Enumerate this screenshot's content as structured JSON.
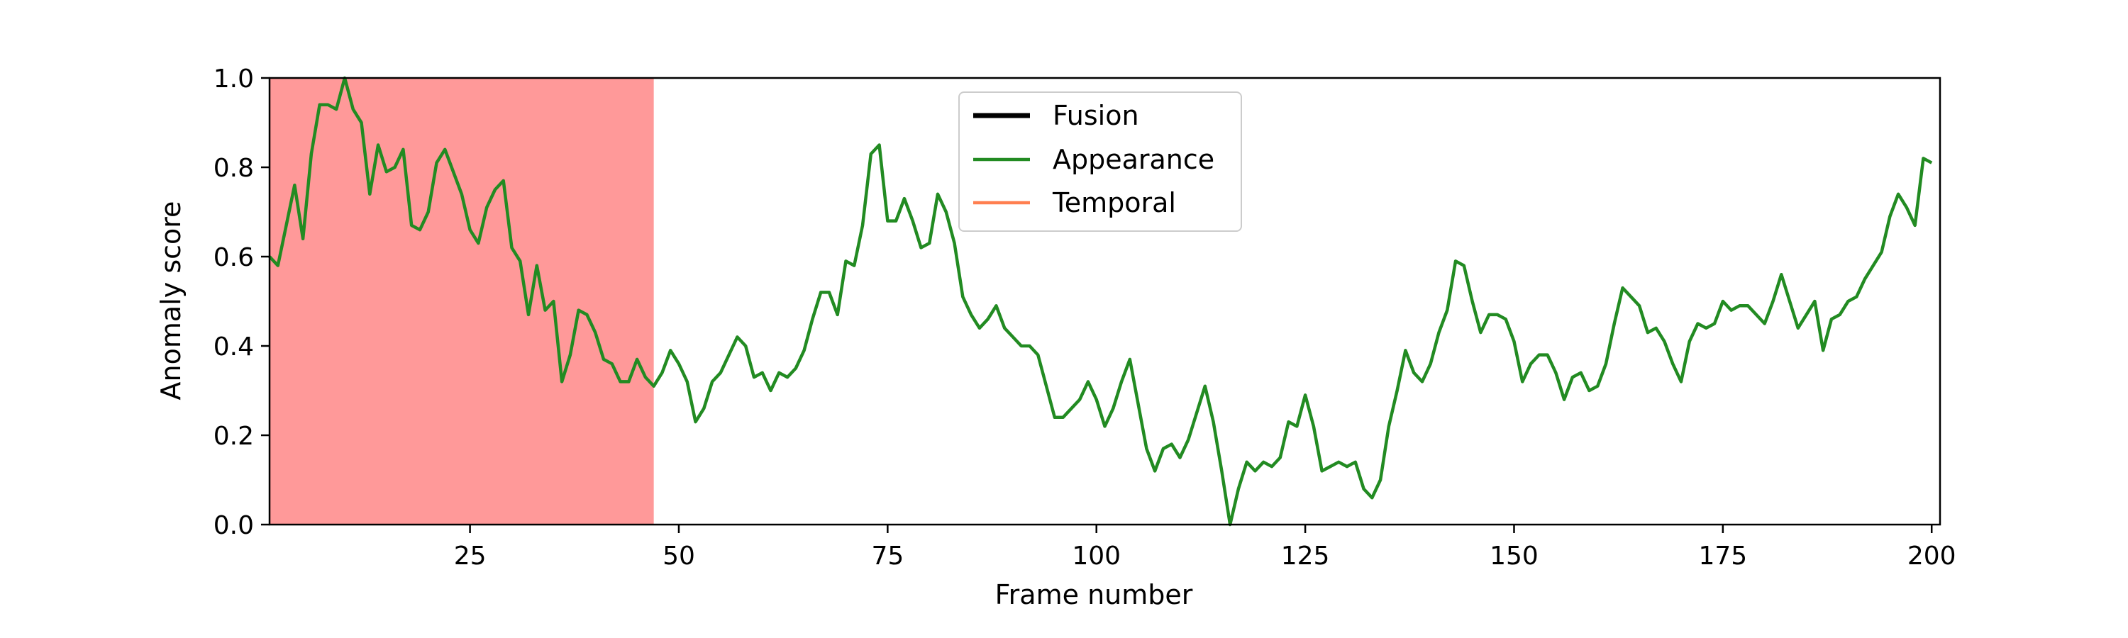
{
  "chart_data": {
    "type": "line",
    "title": "",
    "xlabel": "Frame number",
    "ylabel": "Anomaly score",
    "xlim": [
      1,
      201
    ],
    "ylim": [
      0.0,
      1.0
    ],
    "xticks": [
      25,
      50,
      75,
      100,
      125,
      150,
      175,
      200
    ],
    "yticks": [
      0.0,
      0.2,
      0.4,
      0.6,
      0.8,
      1.0
    ],
    "xtick_labels": [
      "25",
      "50",
      "75",
      "100",
      "125",
      "150",
      "175",
      "200"
    ],
    "ytick_labels": [
      "0.0",
      "0.2",
      "0.4",
      "0.6",
      "0.8",
      "1.0"
    ],
    "grid": false,
    "legend_position": "top-center",
    "anomaly_region": {
      "x_start": 1,
      "x_end": 47,
      "color": "#ff9999"
    },
    "series": [
      {
        "name": "Fusion",
        "color": "#000000",
        "visible": false,
        "values": []
      },
      {
        "name": "Appearance",
        "color": "#228b22",
        "visible": true,
        "x_start": 1,
        "values": [
          0.6,
          0.58,
          0.67,
          0.76,
          0.64,
          0.83,
          0.94,
          0.94,
          0.93,
          1.0,
          0.93,
          0.9,
          0.74,
          0.85,
          0.79,
          0.8,
          0.84,
          0.67,
          0.66,
          0.7,
          0.81,
          0.84,
          0.79,
          0.74,
          0.66,
          0.63,
          0.71,
          0.75,
          0.77,
          0.62,
          0.59,
          0.47,
          0.58,
          0.48,
          0.5,
          0.32,
          0.38,
          0.48,
          0.47,
          0.43,
          0.37,
          0.36,
          0.32,
          0.32,
          0.37,
          0.33,
          0.31,
          0.34,
          0.39,
          0.36,
          0.32,
          0.23,
          0.26,
          0.32,
          0.34,
          0.38,
          0.42,
          0.4,
          0.33,
          0.34,
          0.3,
          0.34,
          0.33,
          0.35,
          0.39,
          0.46,
          0.52,
          0.52,
          0.47,
          0.59,
          0.58,
          0.67,
          0.83,
          0.85,
          0.68,
          0.68,
          0.73,
          0.68,
          0.62,
          0.63,
          0.74,
          0.7,
          0.63,
          0.51,
          0.47,
          0.44,
          0.46,
          0.49,
          0.44,
          0.42,
          0.4,
          0.4,
          0.38,
          0.31,
          0.24,
          0.24,
          0.26,
          0.28,
          0.32,
          0.28,
          0.22,
          0.26,
          0.32,
          0.37,
          0.27,
          0.17,
          0.12,
          0.17,
          0.18,
          0.15,
          0.19,
          0.25,
          0.31,
          0.23,
          0.12,
          0.0,
          0.08,
          0.14,
          0.12,
          0.14,
          0.13,
          0.15,
          0.23,
          0.22,
          0.29,
          0.22,
          0.12,
          0.13,
          0.14,
          0.13,
          0.14,
          0.08,
          0.06,
          0.1,
          0.22,
          0.3,
          0.39,
          0.34,
          0.32,
          0.36,
          0.43,
          0.48,
          0.59,
          0.58,
          0.5,
          0.43,
          0.47,
          0.47,
          0.46,
          0.41,
          0.32,
          0.36,
          0.38,
          0.38,
          0.34,
          0.28,
          0.33,
          0.34,
          0.3,
          0.31,
          0.36,
          0.45,
          0.53,
          0.51,
          0.49,
          0.43,
          0.44,
          0.41,
          0.36,
          0.32,
          0.41,
          0.45,
          0.44,
          0.45,
          0.5,
          0.48,
          0.49,
          0.49,
          0.47,
          0.45,
          0.5,
          0.56,
          0.5,
          0.44,
          0.47,
          0.5,
          0.39,
          0.46,
          0.47,
          0.5,
          0.51,
          0.55,
          0.58,
          0.61,
          0.69,
          0.74,
          0.71,
          0.67,
          0.82,
          0.81
        ]
      },
      {
        "name": "Temporal",
        "color": "#ff7f50",
        "visible": false,
        "values": []
      }
    ]
  }
}
